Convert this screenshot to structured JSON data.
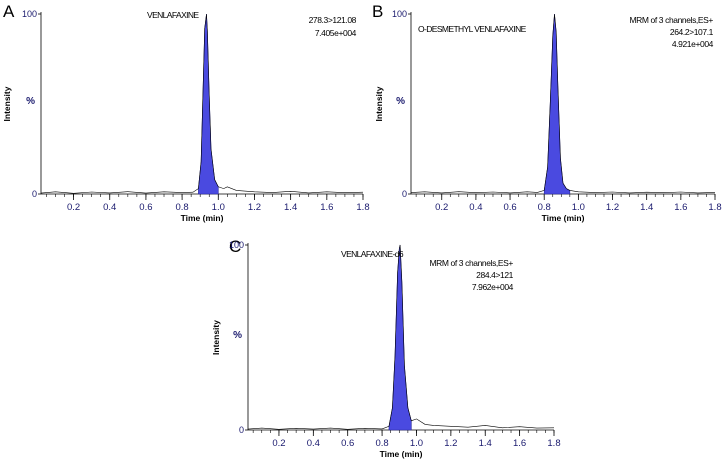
{
  "chart_data": [
    {
      "panel_label": "A",
      "type": "line",
      "compound": "VENLAFAXINE",
      "annotations": [
        "278.3>121.08",
        "7.405e+004"
      ],
      "xlabel": "Time (min)",
      "ylabel": "Intensity",
      "y_unit_label": "%",
      "xlim": [
        0.02,
        1.8
      ],
      "ylim": [
        0,
        100
      ],
      "x_ticks": [
        "0.2",
        "0.4",
        "0.6",
        "0.8",
        "1.0",
        "1.2",
        "1.4",
        "1.6",
        "1.8"
      ],
      "y_ticks": [
        "0",
        "100"
      ],
      "peak_fill_color": "#4a4ae0",
      "line_color": "#000000",
      "x": [
        0.02,
        0.1,
        0.2,
        0.3,
        0.4,
        0.5,
        0.6,
        0.7,
        0.8,
        0.86,
        0.89,
        0.905,
        0.915,
        0.925,
        0.935,
        0.94,
        0.95,
        0.96,
        0.98,
        1.0,
        1.03,
        1.05,
        1.1,
        1.2,
        1.3,
        1.4,
        1.5,
        1.6,
        1.7,
        1.8
      ],
      "y": [
        0.5,
        1.2,
        0.4,
        1.1,
        0.6,
        1.3,
        0.5,
        1.2,
        0.8,
        1.0,
        3,
        18,
        55,
        92,
        100,
        90,
        55,
        25,
        8,
        4,
        3,
        4,
        2,
        1.2,
        0.8,
        1.5,
        0.6,
        1.2,
        0.7,
        1.0
      ],
      "peak_range": [
        0.89,
        1.02
      ]
    },
    {
      "panel_label": "B",
      "type": "line",
      "compound": "O-DESMETHYL VENLAFAXINE",
      "annotations": [
        "MRM of 3 channels,ES+",
        "264.2>107.1",
        "4.921e+004"
      ],
      "xlabel": "Time (min)",
      "ylabel": "Intensity",
      "y_unit_label": "%",
      "xlim": [
        0.02,
        1.8
      ],
      "ylim": [
        0,
        100
      ],
      "x_ticks": [
        "0.2",
        "0.4",
        "0.6",
        "0.8",
        "1.0",
        "1.2",
        "1.4",
        "1.6",
        "1.8"
      ],
      "y_ticks": [
        "0",
        "100"
      ],
      "peak_fill_color": "#4a4ae0",
      "line_color": "#000000",
      "x": [
        0.02,
        0.1,
        0.2,
        0.3,
        0.4,
        0.5,
        0.6,
        0.7,
        0.76,
        0.8,
        0.82,
        0.835,
        0.85,
        0.86,
        0.87,
        0.88,
        0.895,
        0.91,
        0.93,
        0.95,
        1.0,
        1.1,
        1.2,
        1.3,
        1.4,
        1.5,
        1.6,
        1.7,
        1.8
      ],
      "y": [
        0.8,
        1.2,
        0.6,
        1.3,
        0.7,
        1.1,
        0.6,
        1.2,
        0.9,
        2,
        15,
        50,
        88,
        100,
        90,
        60,
        20,
        6,
        3,
        2,
        1.2,
        0.8,
        1.1,
        0.6,
        1.0,
        0.7,
        1.1,
        0.6,
        0.9
      ],
      "peak_range": [
        0.8,
        0.95
      ]
    },
    {
      "panel_label": "C",
      "type": "line",
      "compound": "VENLAFAXINE-d6",
      "annotations": [
        "MRM of 3 channels,ES+",
        "284.4>121",
        "7.962e+004"
      ],
      "xlabel": "Time (min)",
      "ylabel": "Intensity",
      "y_unit_label": "%",
      "xlim": [
        0.02,
        1.8
      ],
      "ylim": [
        0,
        100
      ],
      "x_ticks": [
        "0.2",
        "0.4",
        "0.6",
        "0.8",
        "1.0",
        "1.2",
        "1.4",
        "1.6",
        "1.8"
      ],
      "y_ticks": [
        "0",
        "100"
      ],
      "peak_fill_color": "#4a4ae0",
      "line_color": "#000000",
      "x": [
        0.02,
        0.1,
        0.2,
        0.3,
        0.4,
        0.5,
        0.6,
        0.7,
        0.8,
        0.84,
        0.86,
        0.875,
        0.89,
        0.9,
        0.905,
        0.915,
        0.93,
        0.95,
        0.97,
        1.0,
        1.05,
        1.1,
        1.2,
        1.3,
        1.4,
        1.5,
        1.6,
        1.7,
        1.8
      ],
      "y": [
        0.5,
        1.0,
        0.4,
        0.9,
        0.5,
        1.0,
        0.4,
        0.9,
        0.6,
        2,
        12,
        40,
        85,
        98,
        100,
        80,
        35,
        12,
        5,
        6,
        3,
        2.5,
        2,
        1.5,
        2.5,
        1.2,
        1.8,
        1.0,
        1.2
      ],
      "peak_range": [
        0.84,
        0.97
      ]
    }
  ]
}
